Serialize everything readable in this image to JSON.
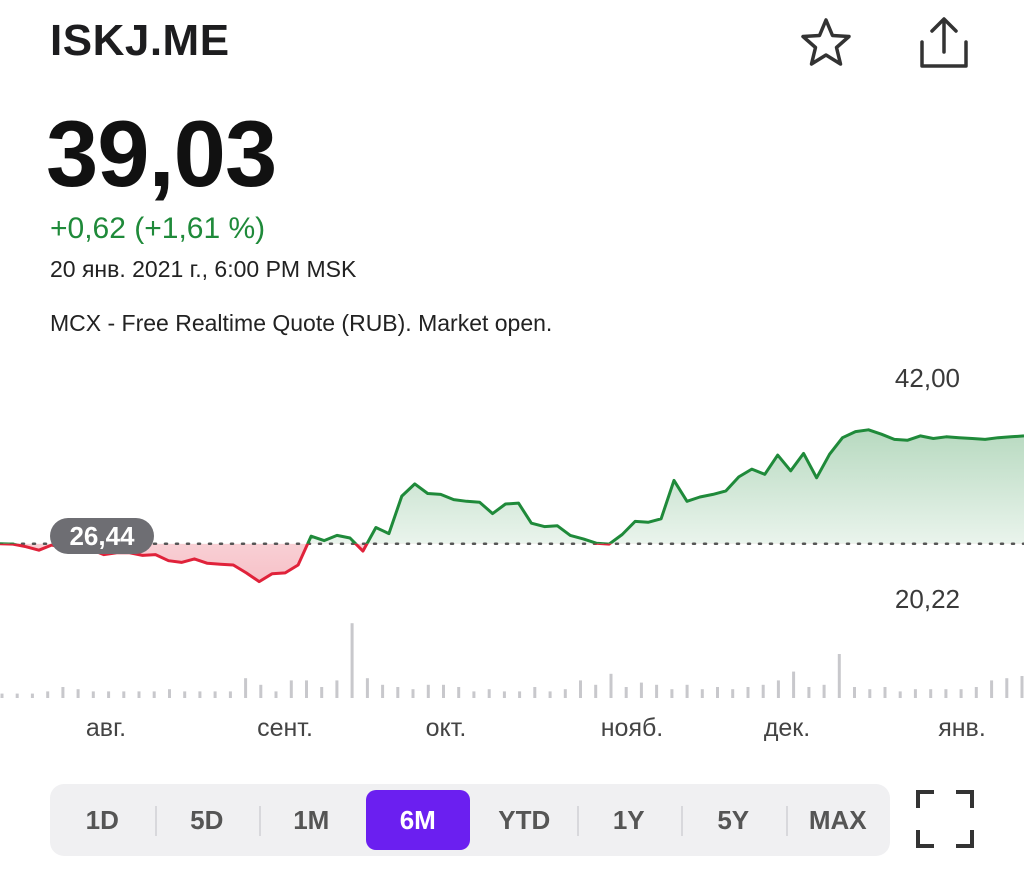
{
  "header": {
    "ticker": "ISKJ.ME",
    "star_icon": "star-icon",
    "share_icon": "share-icon"
  },
  "quote": {
    "price": "39,03",
    "change": "+0,62 (+1,61 %)",
    "timestamp": "20 янв. 2021 г., 6:00 PM MSK",
    "source": "MCX - Free Realtime Quote (RUB). Market open."
  },
  "colors": {
    "up": "#1f8a3a",
    "down": "#e0223a",
    "accent": "#6b1ff0"
  },
  "chart_data": {
    "type": "line",
    "x_labels": [
      "авг.",
      "сент.",
      "окт.",
      "нояб.",
      "дек.",
      "янв."
    ],
    "previous_close_label": "26,44",
    "previous_close": 26.44,
    "high_label": "42,00",
    "low_label": "20,22",
    "ylim": [
      20.22,
      42.0
    ],
    "grid": false,
    "series": [
      {
        "values": [
          26.44,
          26.4,
          26.1,
          25.7,
          26.3,
          25.9,
          26.0,
          25.8,
          25.2,
          25.4,
          25.4,
          25.1,
          25.2,
          24.5,
          24.3,
          24.7,
          24.2,
          24.1,
          24.0,
          23.1,
          22.1,
          23.0,
          23.1,
          24.0,
          27.3,
          26.8,
          27.4,
          27.1,
          25.6,
          28.3,
          27.6,
          31.9,
          33.3,
          32.2,
          32.1,
          31.5,
          31.3,
          31.2,
          29.9,
          31.0,
          31.1,
          28.8,
          28.4,
          28.5,
          27.4,
          27.0,
          26.5,
          26.4,
          27.5,
          29.0,
          28.9,
          29.3,
          33.7,
          31.3,
          31.8,
          32.1,
          32.5,
          34.1,
          35.0,
          34.4,
          36.6,
          34.8,
          36.8,
          34.0,
          36.7,
          38.6,
          39.3,
          39.5,
          39.0,
          38.4,
          38.3,
          38.8,
          38.5,
          38.7,
          38.6,
          38.5,
          38.4,
          38.6,
          38.7,
          38.8
        ]
      }
    ]
  },
  "volume_data": [
    0.2,
    0.2,
    0.2,
    0.3,
    0.5,
    0.4,
    0.3,
    0.3,
    0.3,
    0.3,
    0.3,
    0.4,
    0.3,
    0.3,
    0.3,
    0.3,
    0.9,
    0.6,
    0.3,
    0.8,
    0.8,
    0.5,
    0.8,
    3.4,
    0.9,
    0.6,
    0.5,
    0.4,
    0.6,
    0.6,
    0.5,
    0.3,
    0.4,
    0.3,
    0.3,
    0.5,
    0.3,
    0.4,
    0.8,
    0.6,
    1.1,
    0.5,
    0.7,
    0.6,
    0.4,
    0.6,
    0.4,
    0.5,
    0.4,
    0.5,
    0.6,
    0.8,
    1.2,
    0.5,
    0.6,
    2.0,
    0.5,
    0.4,
    0.5,
    0.3,
    0.4,
    0.4,
    0.4,
    0.4,
    0.5,
    0.8,
    0.9,
    1.0
  ],
  "time_ranges": [
    "1D",
    "5D",
    "1M",
    "6M",
    "YTD",
    "1Y",
    "5Y",
    "MAX"
  ],
  "selected_range": "6M",
  "fullscreen_icon": "fullscreen-icon"
}
